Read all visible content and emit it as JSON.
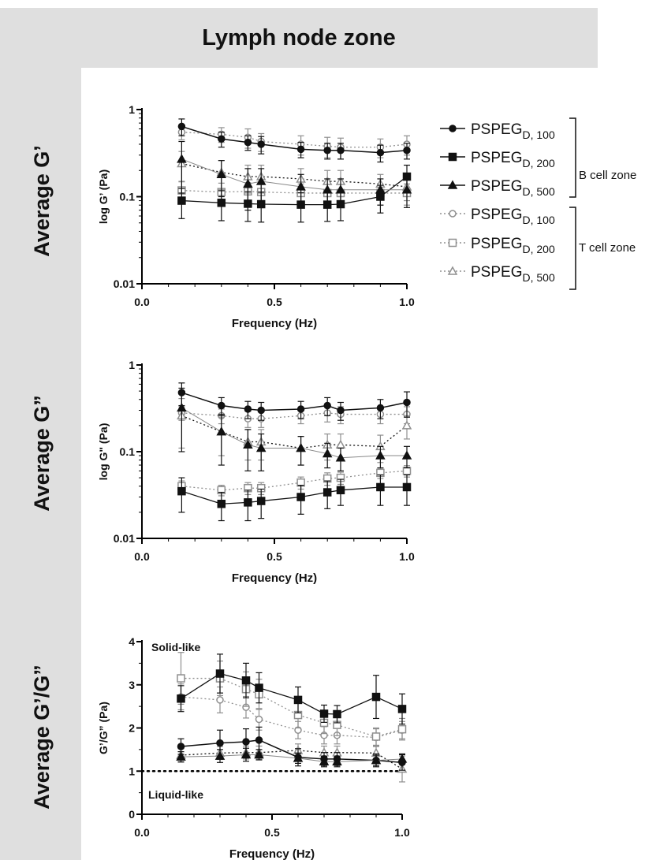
{
  "header": {
    "title": "Lymph node zone"
  },
  "legend": {
    "entries": [
      {
        "base": "PSPEG",
        "sub": "D, 100",
        "marker": "circle",
        "filled": true,
        "style": "solid"
      },
      {
        "base": "PSPEG",
        "sub": "D, 200",
        "marker": "square",
        "filled": true,
        "style": "solid"
      },
      {
        "base": "PSPEG",
        "sub": "D, 500",
        "marker": "triangle",
        "filled": true,
        "style": "solid"
      },
      {
        "base": "PSPEG",
        "sub": "D, 100",
        "marker": "circle",
        "filled": false,
        "style": "dotted"
      },
      {
        "base": "PSPEG",
        "sub": "D, 200",
        "marker": "square",
        "filled": false,
        "style": "dotted"
      },
      {
        "base": "PSPEG",
        "sub": "D, 500",
        "marker": "triangle",
        "filled": false,
        "style": "dotted"
      }
    ],
    "groups": [
      {
        "label": "B cell zone",
        "from": 0,
        "to": 2
      },
      {
        "label": "T cell zone",
        "from": 3,
        "to": 5
      }
    ]
  },
  "colors": {
    "b_zone": "#111111",
    "t_zone": "#8f8f8f",
    "band": "#dfdfdf"
  },
  "chart_data": [
    {
      "type": "line",
      "row_label": "Average G’",
      "ylabel": "log G’ (Pa)",
      "xlabel": "Frequency (Hz)",
      "yscale": "log",
      "ylim": [
        0.01,
        1
      ],
      "xlim": [
        0,
        1
      ],
      "x_ticks": [
        "0.0",
        "0.5",
        "1.0"
      ],
      "y_ticks": [
        "0.01",
        "0.1",
        "1"
      ],
      "x": [
        0.15,
        0.3,
        0.4,
        0.45,
        0.6,
        0.7,
        0.75,
        0.9,
        1.0
      ],
      "series": [
        {
          "group": "B cell zone",
          "values": [
            0.64,
            0.46,
            0.42,
            0.4,
            0.35,
            0.34,
            0.34,
            0.32,
            0.34
          ],
          "err": [
            0.14,
            0.09,
            0.08,
            0.09,
            0.07,
            0.07,
            0.07,
            0.07,
            0.07
          ]
        },
        {
          "group": "B cell zone",
          "values": [
            0.09,
            0.085,
            0.083,
            0.082,
            0.081,
            0.081,
            0.082,
            0.1,
            0.17
          ],
          "err": [
            0.034,
            0.032,
            0.031,
            0.031,
            0.03,
            0.029,
            0.029,
            0.035,
            0.06
          ]
        },
        {
          "group": "B cell zone",
          "values": [
            0.27,
            0.18,
            0.14,
            0.15,
            0.13,
            0.12,
            0.12,
            0.12,
            0.12
          ],
          "err": [
            0.16,
            0.08,
            0.07,
            0.06,
            0.05,
            0.04,
            0.04,
            0.04,
            0.045
          ]
        },
        {
          "group": "T cell zone",
          "values": [
            0.55,
            0.52,
            0.48,
            0.43,
            0.4,
            0.38,
            0.37,
            0.37,
            0.4
          ],
          "err": [
            0.1,
            0.1,
            0.12,
            0.1,
            0.1,
            0.1,
            0.1,
            0.09,
            0.1
          ]
        },
        {
          "group": "T cell zone",
          "values": [
            0.118,
            0.113,
            0.115,
            0.113,
            0.11,
            0.11,
            0.11,
            0.11,
            0.11
          ],
          "err": [
            0.03,
            0.03,
            0.03,
            0.03,
            0.03,
            0.03,
            0.03,
            0.03,
            0.03
          ]
        },
        {
          "group": "T cell zone",
          "values": [
            0.24,
            0.19,
            0.17,
            0.17,
            0.16,
            0.15,
            0.15,
            0.14,
            0.13
          ],
          "err": [
            0.09,
            0.07,
            0.06,
            0.06,
            0.05,
            0.05,
            0.05,
            0.04,
            0.04
          ]
        }
      ]
    },
    {
      "type": "line",
      "row_label": "Average G”",
      "ylabel": "log G\" (Pa)",
      "xlabel": "Frequency (Hz)",
      "yscale": "log",
      "ylim": [
        0.01,
        1
      ],
      "xlim": [
        0,
        1
      ],
      "x_ticks": [
        "0.0",
        "0.5",
        "1.0"
      ],
      "y_ticks": [
        "0.01",
        "0.1",
        "1"
      ],
      "x": [
        0.15,
        0.3,
        0.4,
        0.45,
        0.6,
        0.7,
        0.75,
        0.9,
        1.0
      ],
      "series": [
        {
          "group": "B cell zone",
          "values": [
            0.48,
            0.34,
            0.31,
            0.3,
            0.31,
            0.34,
            0.3,
            0.32,
            0.37
          ],
          "err": [
            0.14,
            0.08,
            0.07,
            0.07,
            0.07,
            0.08,
            0.07,
            0.08,
            0.12
          ]
        },
        {
          "group": "B cell zone",
          "values": [
            0.035,
            0.025,
            0.026,
            0.027,
            0.03,
            0.034,
            0.036,
            0.039,
            0.039
          ],
          "err": [
            0.015,
            0.009,
            0.01,
            0.01,
            0.011,
            0.012,
            0.012,
            0.015,
            0.015
          ]
        },
        {
          "group": "B cell zone",
          "values": [
            0.32,
            0.17,
            0.12,
            0.11,
            0.11,
            0.095,
            0.085,
            0.09,
            0.09
          ],
          "err": [
            0.22,
            0.1,
            0.06,
            0.05,
            0.04,
            0.03,
            0.025,
            0.025,
            0.025
          ]
        },
        {
          "group": "T cell zone",
          "values": [
            0.28,
            0.26,
            0.24,
            0.24,
            0.26,
            0.28,
            0.27,
            0.27,
            0.27
          ],
          "err": [
            0.05,
            0.05,
            0.05,
            0.05,
            0.05,
            0.06,
            0.06,
            0.06,
            0.06
          ]
        },
        {
          "group": "T cell zone",
          "values": [
            0.04,
            0.036,
            0.038,
            0.038,
            0.044,
            0.049,
            0.05,
            0.057,
            0.06
          ],
          "err": [
            0.006,
            0.005,
            0.006,
            0.006,
            0.007,
            0.008,
            0.008,
            0.008,
            0.009
          ]
        },
        {
          "group": "T cell zone",
          "values": [
            0.26,
            0.17,
            0.13,
            0.13,
            0.11,
            0.12,
            0.12,
            0.115,
            0.2
          ],
          "err": [
            0.15,
            0.08,
            0.05,
            0.05,
            0.04,
            0.04,
            0.04,
            0.04,
            0.06
          ]
        }
      ]
    },
    {
      "type": "line",
      "row_label": "Average G’/G”",
      "ylabel": "G’/G” (Pa)",
      "xlabel": "Frequency (Hz)",
      "yscale": "linear",
      "ylim": [
        0,
        4
      ],
      "xlim": [
        0,
        1
      ],
      "x_ticks": [
        "0.0",
        "0.5",
        "1.0"
      ],
      "y_ticks": [
        "0",
        "1",
        "2",
        "3",
        "4"
      ],
      "annotations": {
        "top": "Solid-like",
        "bottom": "Liquid-like",
        "reference_line": 1
      },
      "x": [
        0.15,
        0.3,
        0.4,
        0.45,
        0.6,
        0.7,
        0.75,
        0.9,
        1.0
      ],
      "series": [
        {
          "group": "B cell zone",
          "values": [
            1.57,
            1.65,
            1.68,
            1.72,
            1.32,
            1.28,
            1.28,
            1.25,
            1.2
          ],
          "err": [
            0.18,
            0.3,
            0.3,
            0.3,
            0.2,
            0.15,
            0.15,
            0.15,
            0.18
          ]
        },
        {
          "group": "B cell zone",
          "values": [
            2.68,
            3.26,
            3.1,
            2.93,
            2.65,
            2.33,
            2.32,
            2.72,
            2.44
          ],
          "err": [
            0.3,
            0.45,
            0.4,
            0.35,
            0.3,
            0.2,
            0.2,
            0.5,
            0.35
          ]
        },
        {
          "group": "B cell zone",
          "values": [
            1.33,
            1.35,
            1.38,
            1.38,
            1.3,
            1.22,
            1.22,
            1.25,
            1.28
          ],
          "err": [
            0.12,
            0.15,
            0.15,
            0.12,
            0.12,
            0.12,
            0.12,
            0.12,
            0.12
          ]
        },
        {
          "group": "T cell zone",
          "values": [
            2.72,
            2.65,
            2.48,
            2.2,
            1.95,
            1.83,
            1.83,
            1.78,
            1.95
          ],
          "err": [
            0.3,
            0.3,
            0.25,
            0.25,
            0.2,
            0.2,
            0.2,
            0.2,
            0.2
          ]
        },
        {
          "group": "T cell zone",
          "values": [
            3.15,
            3.15,
            2.9,
            2.78,
            2.3,
            2.12,
            2.07,
            1.8,
            1.97
          ],
          "err": [
            0.6,
            0.4,
            0.4,
            0.35,
            0.3,
            0.25,
            0.25,
            0.2,
            0.25
          ]
        },
        {
          "group": "T cell zone",
          "values": [
            1.37,
            1.42,
            1.43,
            1.43,
            1.48,
            1.43,
            1.43,
            1.42,
            1.05
          ],
          "err": [
            0.15,
            0.15,
            0.15,
            0.15,
            0.15,
            0.15,
            0.15,
            0.15,
            0.3
          ]
        }
      ]
    }
  ]
}
